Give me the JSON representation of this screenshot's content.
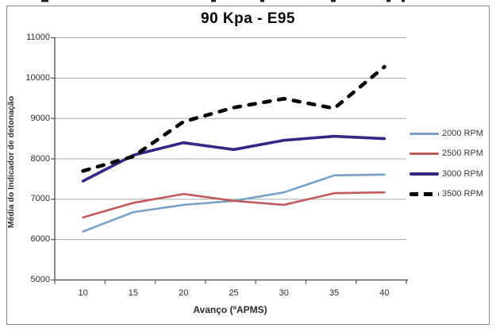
{
  "chart_data": {
    "type": "line",
    "title": "90 Kpa - E95",
    "xlabel": "Avanço (ºAPMS)",
    "ylabel": "Média do Indicador de detonação",
    "x": [
      10,
      15,
      20,
      25,
      30,
      35,
      40
    ],
    "y_ticks": [
      5000,
      6000,
      7000,
      8000,
      9000,
      10000,
      11000
    ],
    "ylim": [
      5000,
      11000
    ],
    "y_tick_step": 1000,
    "grid": true,
    "legend_position": "right",
    "series": [
      {
        "name": "2000 RPM",
        "color": "#79a0c6",
        "style": "solid",
        "width": 2.6,
        "values": [
          6200,
          6680,
          6860,
          6960,
          7170,
          7590,
          7610
        ]
      },
      {
        "name": "2500 RPM",
        "color": "#be5a58",
        "style": "solid",
        "width": 2.6,
        "values": [
          6550,
          6910,
          7130,
          6960,
          6860,
          7150,
          7170
        ]
      },
      {
        "name": "3000 RPM",
        "color": "#332687",
        "style": "solid",
        "width": 3.6,
        "values": [
          7450,
          8090,
          8400,
          8230,
          8460,
          8560,
          8500
        ]
      },
      {
        "name": "3500 RPM",
        "color": "#000000",
        "style": "dashed",
        "width": 4.6,
        "values": [
          7700,
          8060,
          8920,
          9270,
          9490,
          9250,
          10280
        ]
      }
    ],
    "colors": {
      "gridline": "#a6a6a6",
      "axis": "#595959",
      "frame_border": "#8a8a8a",
      "tick_text": "#2b2b2b"
    }
  }
}
